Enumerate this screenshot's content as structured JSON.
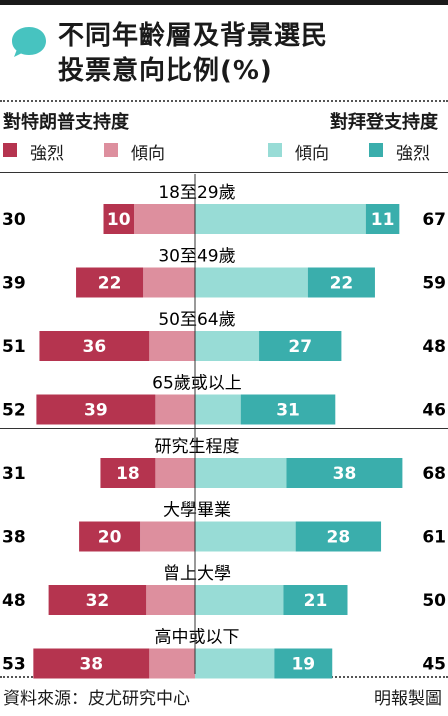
{
  "title": {
    "line1": "不同年齡層及背景選民",
    "line2": "投票意向比例(%)"
  },
  "headers": {
    "left": "對特朗普支持度",
    "right": "對拜登支持度"
  },
  "legend": [
    {
      "label": "強烈",
      "color": "#b5344f"
    },
    {
      "label": "傾向",
      "color": "#dd8f9e"
    },
    {
      "label": "傾向",
      "color": "#98dcd6"
    },
    {
      "label": "強烈",
      "color": "#3aaeac"
    }
  ],
  "colors": {
    "trump_strong": "#b5344f",
    "trump_lean": "#dd8f9e",
    "biden_lean": "#98dcd6",
    "biden_strong": "#3aaeac",
    "bubble": "#47c3c0"
  },
  "footer": {
    "source": "資料來源：皮尤研究中心",
    "credit": "明報製圖"
  },
  "chart_data": {
    "type": "bar",
    "orientation": "horizontal-diverging",
    "unit": "%",
    "categories": [
      "18至29歲",
      "30至49歲",
      "50至64歲",
      "65歲或以上",
      "研究生程度",
      "大學畢業",
      "曾上大學",
      "高中或以下"
    ],
    "series": [
      {
        "name": "對特朗普支持度",
        "totals": [
          30,
          39,
          51,
          52,
          31,
          38,
          48,
          53
        ],
        "strong": [
          10,
          22,
          36,
          39,
          18,
          20,
          32,
          38
        ]
      },
      {
        "name": "對拜登支持度",
        "totals": [
          67,
          59,
          48,
          46,
          68,
          61,
          50,
          45
        ],
        "strong": [
          11,
          22,
          27,
          31,
          38,
          28,
          21,
          19
        ]
      }
    ]
  }
}
